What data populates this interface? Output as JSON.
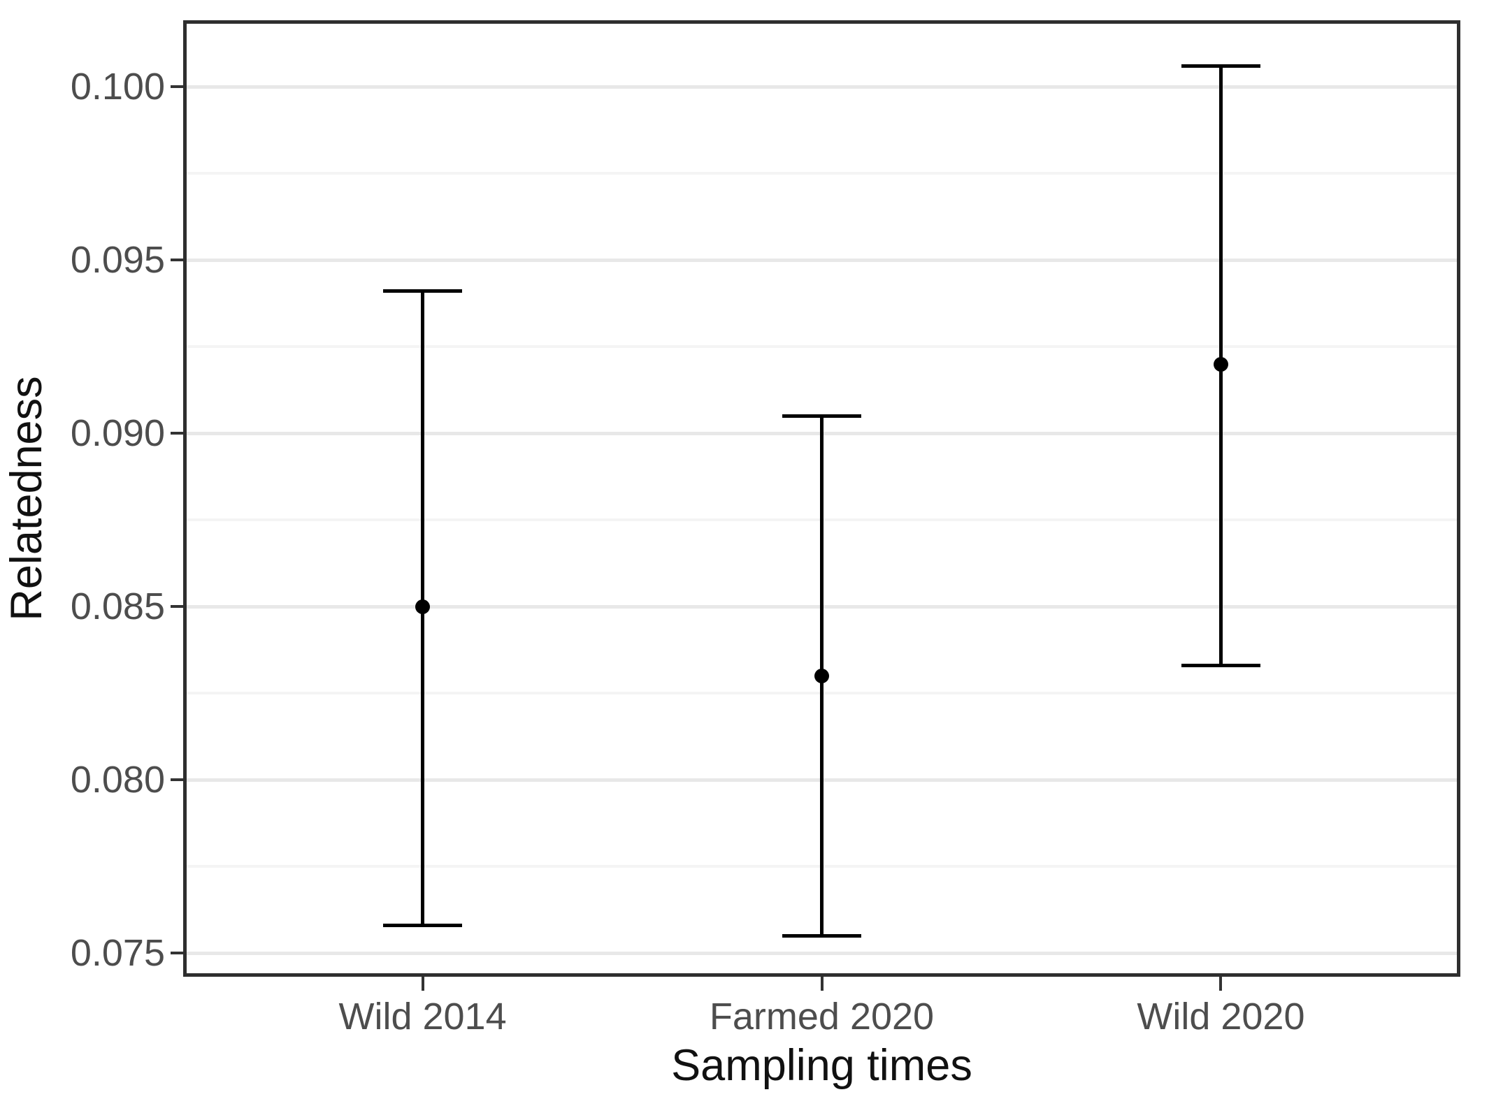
{
  "chart_data": {
    "type": "scatter",
    "subtype": "point-estimates-with-error-bars",
    "title": "",
    "xlabel": "Sampling times",
    "ylabel": "Relatedness",
    "categories": [
      "Wild 2014",
      "Farmed 2020",
      "Wild 2020"
    ],
    "series": [
      {
        "name": "mean",
        "values": [
          0.085,
          0.083,
          0.092
        ]
      },
      {
        "name": "lower",
        "values": [
          0.0758,
          0.0755,
          0.0833
        ]
      },
      {
        "name": "upper",
        "values": [
          0.0941,
          0.0905,
          0.1006
        ]
      }
    ],
    "ylim": [
      0.07432,
      0.10192
    ],
    "yticks": [
      0.075,
      0.08,
      0.085,
      0.09,
      0.095,
      0.1
    ],
    "ytick_labels": [
      "0.075",
      "0.080",
      "0.085",
      "0.090",
      "0.095",
      "0.100"
    ],
    "minor_gridlines": [
      0.0775,
      0.0825,
      0.0875,
      0.0925,
      0.0975
    ],
    "grid": true,
    "legend_position": "none",
    "colors": {
      "marker": "#000000",
      "errorbar": "#000000",
      "panel_border": "#2e2e2e",
      "major_grid": "#e8e8e8",
      "minor_grid": "#f4f4f4",
      "tick_text": "#4d4d4d",
      "axis_title_text": "#111111",
      "background": "#ffffff"
    }
  }
}
